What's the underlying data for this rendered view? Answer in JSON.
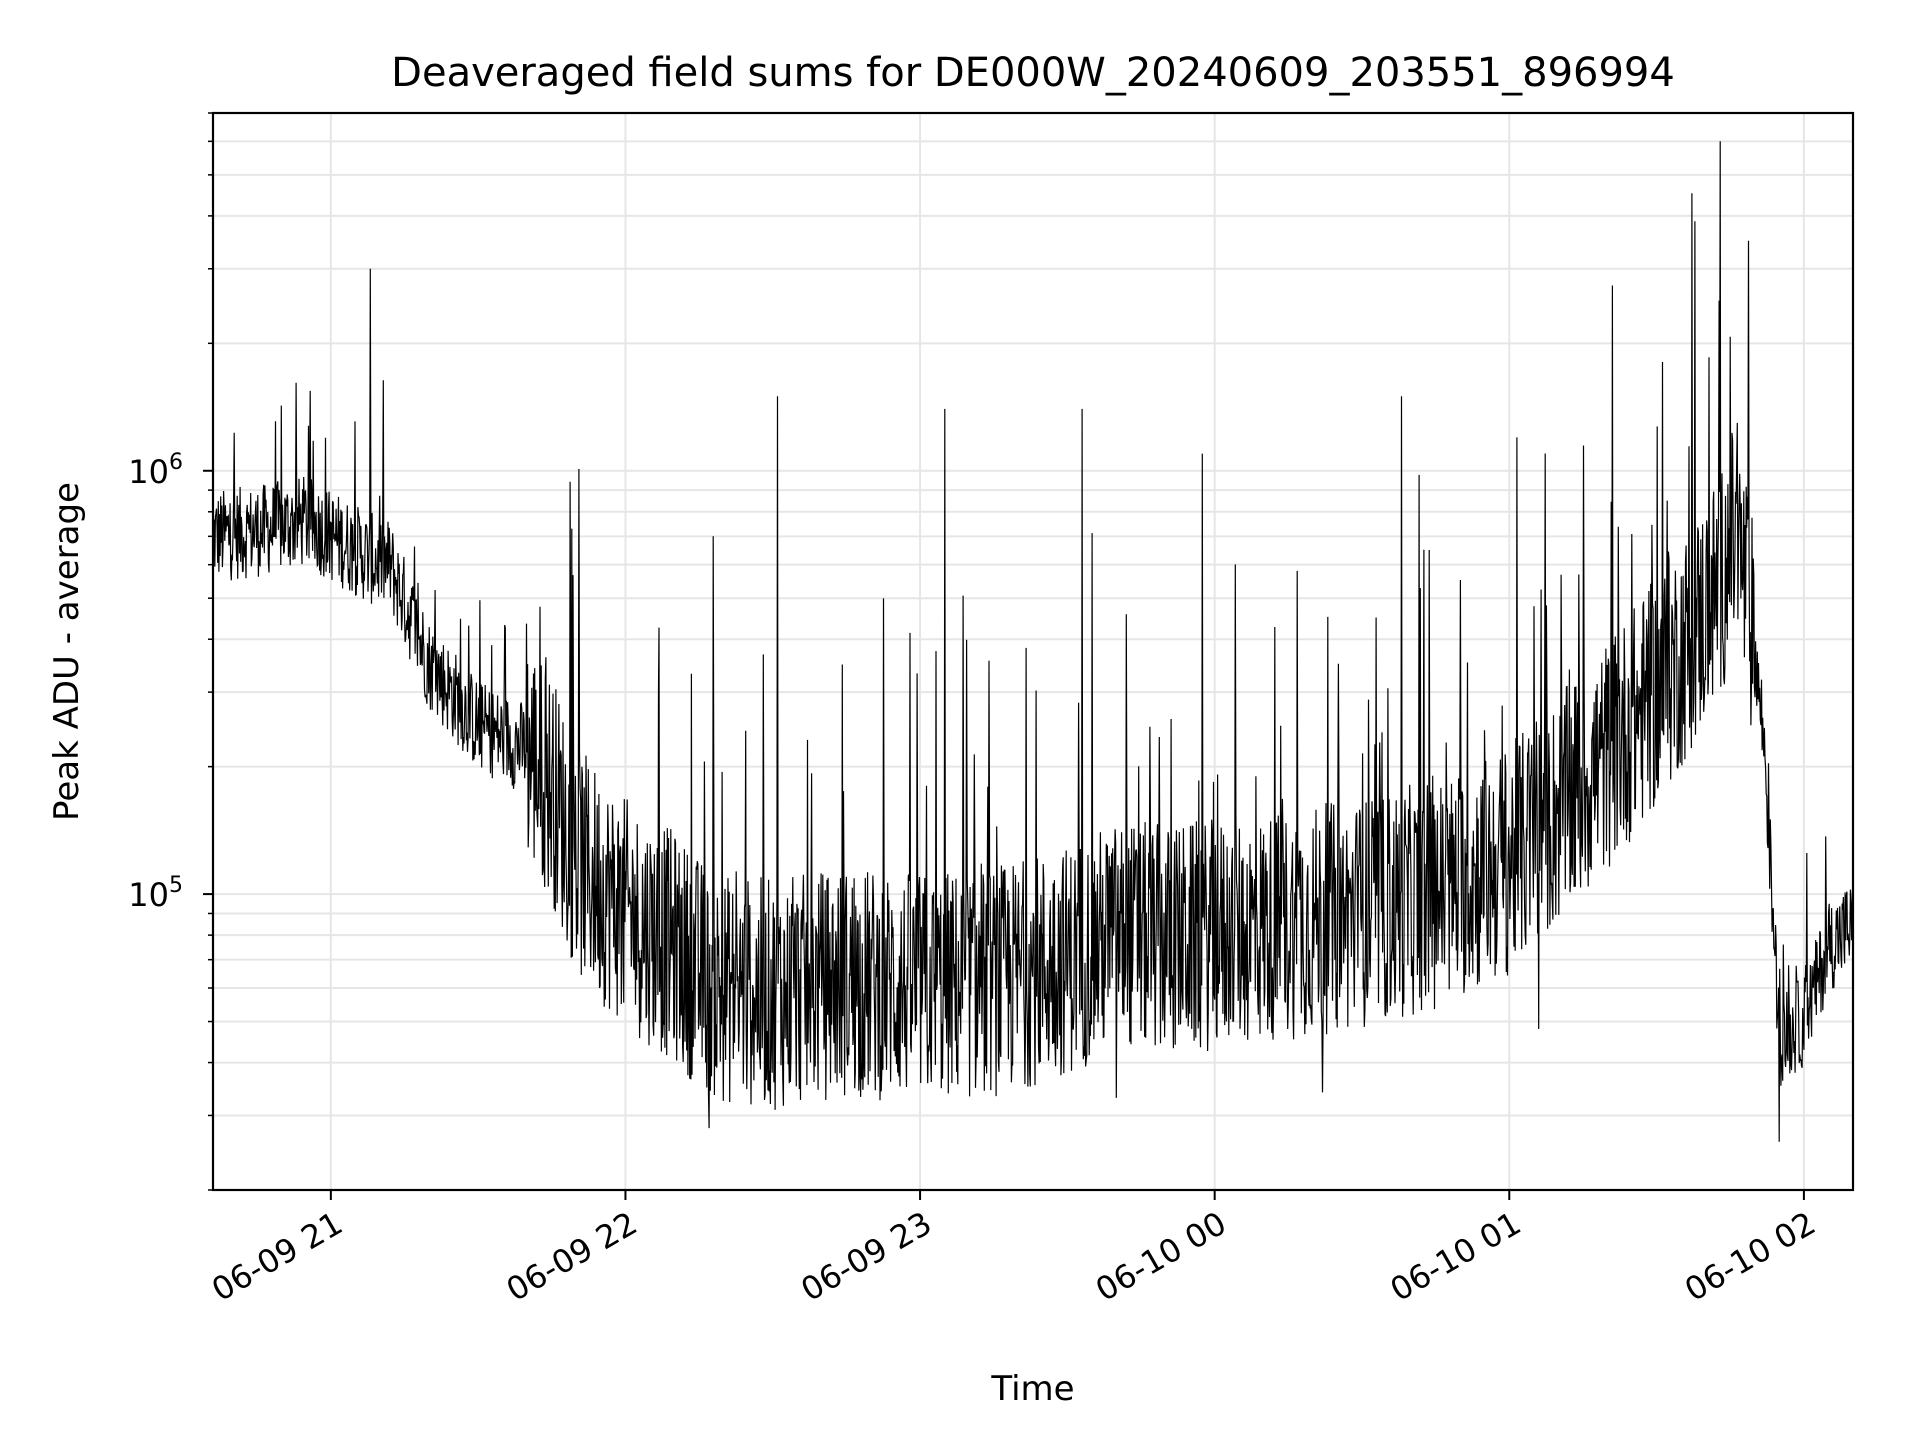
{
  "chart_data": {
    "type": "line",
    "title": "Deaveraged field sums for DE000W_20240609_203551_896994",
    "xlabel": "Time",
    "ylabel": "Peak ADU - average",
    "y_scale": "log",
    "ylim": [
      20000,
      7000000
    ],
    "xlim": [
      "2024-06-09 20:36",
      "2024-06-10 02:10"
    ],
    "x_ticks": [
      {
        "value": "2024-06-09 21:00",
        "label": "06-09 21"
      },
      {
        "value": "2024-06-09 22:00",
        "label": "06-09 22"
      },
      {
        "value": "2024-06-09 23:00",
        "label": "06-09 23"
      },
      {
        "value": "2024-06-10 00:00",
        "label": "06-10 00"
      },
      {
        "value": "2024-06-10 01:00",
        "label": "06-10 01"
      },
      {
        "value": "2024-06-10 02:00",
        "label": "06-10 02"
      }
    ],
    "y_ticks": [
      {
        "value": 100000,
        "base": "10",
        "exp": "5"
      },
      {
        "value": 1000000,
        "base": "10",
        "exp": "6"
      }
    ],
    "grid": true,
    "line_color": "#000000",
    "grid_color": "#e6e6e6",
    "series": [
      {
        "x": [
          "2024-06-09 20:36",
          "2024-06-09 20:45",
          "2024-06-09 20:55",
          "2024-06-09 21:05",
          "2024-06-09 21:08",
          "2024-06-09 21:12",
          "2024-06-09 21:20",
          "2024-06-09 21:30",
          "2024-06-09 21:40",
          "2024-06-09 21:45",
          "2024-06-09 21:50",
          "2024-06-09 22:00",
          "2024-06-09 22:10",
          "2024-06-09 22:18",
          "2024-06-09 22:30",
          "2024-06-09 22:45",
          "2024-06-09 23:00",
          "2024-06-09 23:15",
          "2024-06-09 23:30",
          "2024-06-09 23:40",
          "2024-06-09 23:50",
          "2024-06-10 00:00",
          "2024-06-10 00:15",
          "2024-06-10 00:30",
          "2024-06-10 00:45",
          "2024-06-10 01:00",
          "2024-06-10 01:15",
          "2024-06-10 01:30",
          "2024-06-10 01:38",
          "2024-06-10 01:43",
          "2024-06-10 01:46",
          "2024-06-10 01:48",
          "2024-06-10 01:50",
          "2024-06-10 01:52",
          "2024-06-10 01:55",
          "2024-06-10 02:00",
          "2024-06-10 02:05",
          "2024-06-10 02:10"
        ],
        "values": [
          700000,
          720000,
          760000,
          650000,
          620000,
          600000,
          350000,
          250000,
          220000,
          180000,
          120000,
          90000,
          75000,
          60000,
          58000,
          62000,
          60000,
          62000,
          70000,
          80000,
          78000,
          80000,
          85000,
          90000,
          100000,
          120000,
          180000,
          300000,
          420000,
          550000,
          700000,
          550000,
          380000,
          220000,
          45000,
          50000,
          75000,
          85000
        ]
      }
    ],
    "spikes": [
      {
        "x": "2024-06-09 21:08",
        "value": 3000000
      },
      {
        "x": "2024-06-09 22:31",
        "value": 1500000
      },
      {
        "x": "2024-06-09 23:05",
        "value": 1400000
      },
      {
        "x": "2024-06-09 23:33",
        "value": 1400000
      },
      {
        "x": "2024-06-10 00:38",
        "value": 1500000
      },
      {
        "x": "2024-06-10 01:43",
        "value": 6000000
      }
    ],
    "dips": [
      {
        "x": "2024-06-09 22:17",
        "value": 28000
      },
      {
        "x": "2024-06-09 23:40",
        "value": 33000
      },
      {
        "x": "2024-06-10 00:22",
        "value": 34000
      },
      {
        "x": "2024-06-10 01:06",
        "value": 48000
      },
      {
        "x": "2024-06-10 01:55",
        "value": 26000
      }
    ]
  }
}
